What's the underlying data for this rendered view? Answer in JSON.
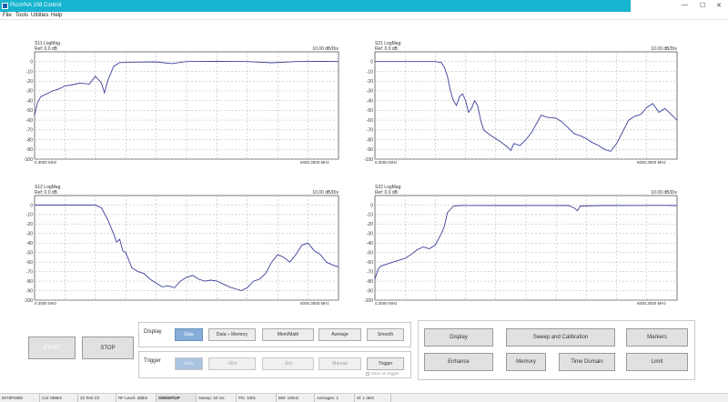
{
  "window": {
    "title": "PicoVNA 108 Control",
    "minimize": "—",
    "maximize": "☐",
    "close": "✕"
  },
  "menu": [
    "File",
    "Tools",
    "Utilities",
    "Help"
  ],
  "charts": [
    {
      "id": "s11",
      "title": "S11 LogMag",
      "ref": "Ref: 0.0 dB",
      "scale": "10.00 dB/Div",
      "start": "0.3000 MHz",
      "stop": "6000.3000 MHz",
      "yticks": [
        "0",
        "-10",
        "-20",
        "-30",
        "-40",
        "-50",
        "-60",
        "-70",
        "-80",
        "-90",
        "-100"
      ],
      "ylim": [
        -100,
        10
      ],
      "series": [
        [
          0,
          -55
        ],
        [
          1,
          -42
        ],
        [
          2,
          -36
        ],
        [
          4,
          -33
        ],
        [
          6,
          -30
        ],
        [
          8,
          -28
        ],
        [
          10,
          -25
        ],
        [
          12,
          -24
        ],
        [
          15,
          -22
        ],
        [
          18,
          -23
        ],
        [
          20,
          -15
        ],
        [
          22,
          -22
        ],
        [
          23,
          -32
        ],
        [
          24,
          -20
        ],
        [
          26,
          -5
        ],
        [
          28,
          -1
        ],
        [
          32,
          -0.5
        ],
        [
          40,
          -0.3
        ],
        [
          45,
          -2
        ],
        [
          50,
          0
        ],
        [
          60,
          0.2
        ],
        [
          70,
          0
        ],
        [
          78,
          -1.2
        ],
        [
          86,
          0
        ],
        [
          95,
          0.2
        ],
        [
          100,
          0
        ]
      ]
    },
    {
      "id": "s21",
      "title": "S21 LogMag",
      "ref": "Ref: 0.0 dB",
      "scale": "10.00 dB/Div",
      "start": "0.3000 MHz",
      "stop": "6000.3000 MHz",
      "yticks": [
        "0",
        "-10",
        "-20",
        "-30",
        "-40",
        "-50",
        "-60",
        "-70",
        "-80",
        "-90",
        "-100"
      ],
      "ylim": [
        -100,
        10
      ],
      "series": [
        [
          0,
          0
        ],
        [
          10,
          0
        ],
        [
          20,
          0
        ],
        [
          22,
          -1
        ],
        [
          23,
          -6
        ],
        [
          24,
          -15
        ],
        [
          25,
          -30
        ],
        [
          26,
          -40
        ],
        [
          27,
          -45
        ],
        [
          28,
          -36
        ],
        [
          29,
          -33
        ],
        [
          30,
          -40
        ],
        [
          31,
          -52
        ],
        [
          32,
          -48
        ],
        [
          33,
          -40
        ],
        [
          34,
          -45
        ],
        [
          35,
          -60
        ],
        [
          36,
          -70
        ],
        [
          38,
          -75
        ],
        [
          40,
          -79
        ],
        [
          42,
          -83
        ],
        [
          44,
          -88
        ],
        [
          45,
          -91
        ],
        [
          46,
          -84
        ],
        [
          48,
          -86
        ],
        [
          50,
          -80
        ],
        [
          52,
          -72
        ],
        [
          55,
          -55
        ],
        [
          57,
          -57
        ],
        [
          60,
          -58
        ],
        [
          62,
          -62
        ],
        [
          64,
          -68
        ],
        [
          66,
          -74
        ],
        [
          68,
          -76
        ],
        [
          70,
          -79
        ],
        [
          72,
          -83
        ],
        [
          74,
          -86
        ],
        [
          76,
          -90
        ],
        [
          78,
          -92
        ],
        [
          80,
          -84
        ],
        [
          82,
          -72
        ],
        [
          84,
          -60
        ],
        [
          86,
          -56
        ],
        [
          88,
          -54
        ],
        [
          90,
          -47
        ],
        [
          92,
          -43
        ],
        [
          94,
          -52
        ],
        [
          96,
          -48
        ],
        [
          98,
          -54
        ],
        [
          100,
          -60
        ]
      ]
    },
    {
      "id": "s12",
      "title": "S12 LogMag",
      "ref": "Ref: 0.0 dB",
      "scale": "10.00 dB/Div",
      "start": "0.3000 MHz",
      "stop": "6000.3000 MHz",
      "yticks": [
        "0",
        "-10",
        "-20",
        "-30",
        "-40",
        "-50",
        "-60",
        "-70",
        "-80",
        "-90",
        "-100"
      ],
      "ylim": [
        -100,
        10
      ],
      "series": [
        [
          0,
          0
        ],
        [
          10,
          0
        ],
        [
          20,
          0
        ],
        [
          22,
          -3
        ],
        [
          24,
          -15
        ],
        [
          26,
          -30
        ],
        [
          27,
          -39
        ],
        [
          28,
          -36
        ],
        [
          29,
          -48
        ],
        [
          30,
          -50
        ],
        [
          31,
          -58
        ],
        [
          32,
          -66
        ],
        [
          33,
          -68
        ],
        [
          34,
          -70
        ],
        [
          36,
          -72
        ],
        [
          38,
          -78
        ],
        [
          40,
          -82
        ],
        [
          42,
          -86
        ],
        [
          44,
          -85
        ],
        [
          46,
          -87
        ],
        [
          48,
          -80
        ],
        [
          50,
          -76
        ],
        [
          52,
          -74
        ],
        [
          54,
          -78
        ],
        [
          56,
          -80
        ],
        [
          58,
          -79
        ],
        [
          60,
          -80
        ],
        [
          62,
          -83
        ],
        [
          64,
          -86
        ],
        [
          66,
          -88
        ],
        [
          68,
          -90
        ],
        [
          70,
          -87
        ],
        [
          72,
          -80
        ],
        [
          74,
          -78
        ],
        [
          76,
          -72
        ],
        [
          78,
          -60
        ],
        [
          80,
          -52
        ],
        [
          82,
          -55
        ],
        [
          84,
          -60
        ],
        [
          86,
          -52
        ],
        [
          88,
          -42
        ],
        [
          90,
          -40
        ],
        [
          92,
          -48
        ],
        [
          94,
          -52
        ],
        [
          96,
          -60
        ],
        [
          98,
          -63
        ],
        [
          100,
          -65
        ]
      ]
    },
    {
      "id": "s22",
      "title": "S22 LogMag",
      "ref": "Ref: 0.0 dB",
      "scale": "10.00 dB/Div",
      "start": "0.3000 MHz",
      "stop": "6000.3000 MHz",
      "yticks": [
        "0",
        "-10",
        "-20",
        "-30",
        "-40",
        "-50",
        "-60",
        "-70",
        "-80",
        "-90",
        "-100"
      ],
      "ylim": [
        -100,
        10
      ],
      "series": [
        [
          0,
          -78
        ],
        [
          1,
          -68
        ],
        [
          2,
          -64
        ],
        [
          4,
          -62
        ],
        [
          6,
          -60
        ],
        [
          8,
          -58
        ],
        [
          10,
          -56
        ],
        [
          12,
          -52
        ],
        [
          14,
          -47
        ],
        [
          16,
          -44
        ],
        [
          18,
          -46
        ],
        [
          20,
          -42
        ],
        [
          22,
          -30
        ],
        [
          23,
          -22
        ],
        [
          24,
          -8
        ],
        [
          26,
          -1
        ],
        [
          28,
          -0.5
        ],
        [
          35,
          -0.4
        ],
        [
          45,
          -0.5
        ],
        [
          55,
          -0.4
        ],
        [
          64,
          -0.5
        ],
        [
          66,
          -3
        ],
        [
          67,
          -6
        ],
        [
          68,
          -1
        ],
        [
          75,
          -0.5
        ],
        [
          85,
          -0.4
        ],
        [
          95,
          -0.3
        ],
        [
          100,
          -0.5
        ]
      ]
    }
  ],
  "controls": {
    "start": "START",
    "stop": "STOP",
    "display_label": "Display",
    "display_buttons": [
      "Data",
      "Data ÷ Memory",
      "Mem/Math",
      "Average",
      "Smooth"
    ],
    "trigger_label": "Trigger",
    "trigger_buttons": [
      "Auto",
      "+Ext",
      "-Ext",
      "Manual"
    ],
    "trigger_button": "Trigger",
    "save_on_trigger": "Save on trigger",
    "right_buttons": [
      "Display",
      "Sweep and Calibration",
      "Markers",
      "Enhance",
      "Memory",
      "Time Domain",
      "Limit"
    ]
  },
  "status": [
    "6078P2885",
    "Cal: 8MB/s",
    "32 Test Ch",
    "RF Level: 3dBm",
    "SWEEP/UP",
    "Sweep: 40 ms",
    "Pts: 1001",
    "BW: 10kHz",
    "Averages: 1",
    "Sl: 1 dest"
  ],
  "colors": {
    "trace": "#3b3f9a",
    "accent": "#17b4cf",
    "active": "#86aed8"
  }
}
